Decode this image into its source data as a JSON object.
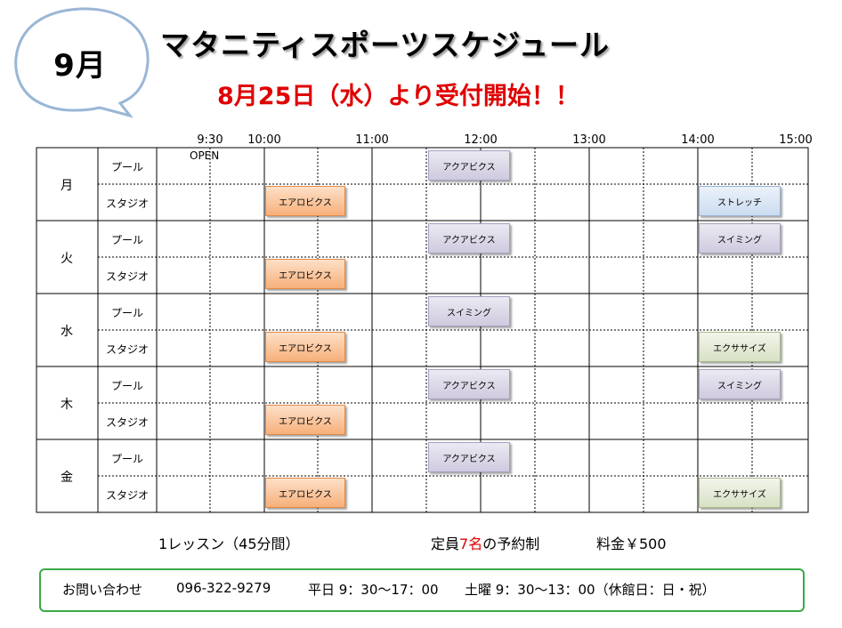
{
  "header": {
    "month": "9月",
    "title": "マタニティスポーツスケジュール",
    "subtitle": "8月25日（水）より受付開始！！"
  },
  "times": [
    "9:30",
    "10:00",
    "11:00",
    "12:00",
    "13:00",
    "14:00",
    "15:00"
  ],
  "open_label": "OPEN",
  "days": [
    {
      "label": "月",
      "facilities": [
        "プール",
        "スタジオ"
      ]
    },
    {
      "label": "火",
      "facilities": [
        "プール",
        "スタジオ"
      ]
    },
    {
      "label": "水",
      "facilities": [
        "プール",
        "スタジオ"
      ]
    },
    {
      "label": "木",
      "facilities": [
        "プール",
        "スタジオ"
      ]
    },
    {
      "label": "金",
      "facilities": [
        "プール",
        "スタジオ"
      ]
    }
  ],
  "classes": [
    {
      "day": "月",
      "facility": "プール",
      "name": "アクアビクス",
      "start": "11:30",
      "color": "aqua"
    },
    {
      "day": "月",
      "facility": "スタジオ",
      "name": "エアロビクス",
      "start": "10:00",
      "color": "aero"
    },
    {
      "day": "月",
      "facility": "スタジオ",
      "name": "ストレッチ",
      "start": "14:00",
      "color": "stretch"
    },
    {
      "day": "火",
      "facility": "プール",
      "name": "アクアビクス",
      "start": "11:30",
      "color": "aqua"
    },
    {
      "day": "火",
      "facility": "プール",
      "name": "スイミング",
      "start": "14:00",
      "color": "aqua"
    },
    {
      "day": "火",
      "facility": "スタジオ",
      "name": "エアロビクス",
      "start": "10:00",
      "color": "aero"
    },
    {
      "day": "水",
      "facility": "プール",
      "name": "スイミング",
      "start": "11:30",
      "color": "aqua"
    },
    {
      "day": "水",
      "facility": "スタジオ",
      "name": "エアロビクス",
      "start": "10:00",
      "color": "aero"
    },
    {
      "day": "水",
      "facility": "スタジオ",
      "name": "エクササイズ",
      "start": "14:00",
      "color": "exer"
    },
    {
      "day": "木",
      "facility": "プール",
      "name": "アクアビクス",
      "start": "11:30",
      "color": "aqua"
    },
    {
      "day": "木",
      "facility": "プール",
      "name": "スイミング",
      "start": "14:00",
      "color": "aqua"
    },
    {
      "day": "木",
      "facility": "スタジオ",
      "name": "エアロビクス",
      "start": "10:00",
      "color": "aero"
    },
    {
      "day": "金",
      "facility": "プール",
      "name": "アクアビクス",
      "start": "11:30",
      "color": "aqua"
    },
    {
      "day": "金",
      "facility": "スタジオ",
      "name": "エアロビクス",
      "start": "10:00",
      "color": "aero"
    },
    {
      "day": "金",
      "facility": "スタジオ",
      "name": "エクササイズ",
      "start": "14:00",
      "color": "exer"
    }
  ],
  "colors": {
    "accent_red": "#e00000",
    "contact_border": "#3aaa45",
    "bubble_border": "#9ab6d6"
  },
  "notes": {
    "lesson": "1レッスン（45分間）",
    "capacity_pre": "定員",
    "capacity_num": "7名",
    "capacity_post": "の予約制",
    "price": "料金￥500"
  },
  "contact": {
    "label": "お問い合わせ",
    "phone": "096-322-9279",
    "weekday": "平日  9：30～17：00",
    "saturday": "土曜  9：30～13：00（休館日：日・祝）"
  }
}
